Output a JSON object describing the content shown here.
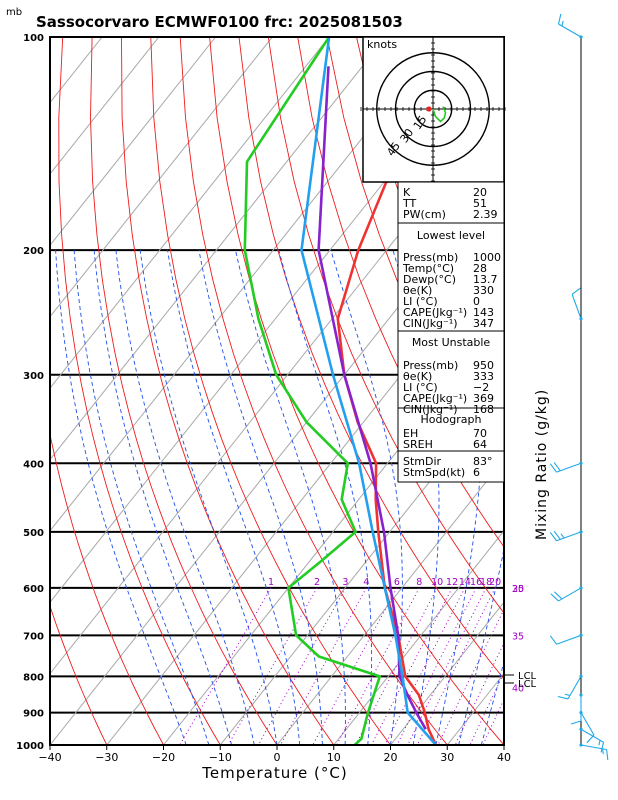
{
  "title": "Sassocorvaro ECMWF0100  frc: 2025081503",
  "chart_data": {
    "type": "skew-t",
    "pressure_unit": "mb",
    "xlabel": "Temperature (°C)",
    "right_label": "Mixing Ratio (g/kg)",
    "x_ticks": [
      "−40",
      "−30",
      "−20",
      "−10",
      "0",
      "10",
      "20",
      "30",
      "40"
    ],
    "x_tick_values": [
      -40,
      -30,
      -20,
      -10,
      0,
      10,
      20,
      30,
      40
    ],
    "p_labels": [
      "100",
      "200",
      "300",
      "400",
      "500",
      "600",
      "700",
      "800",
      "900",
      "1000"
    ],
    "p_label_values": [
      100,
      200,
      300,
      400,
      500,
      600,
      700,
      800,
      900,
      1000
    ],
    "temp_range": [
      -40,
      40
    ],
    "p_range": [
      100,
      1000
    ],
    "mixing_ratio_labels": [
      {
        "text": "1",
        "w": 1,
        "p": 600
      },
      {
        "text": "2",
        "w": 2,
        "p": 600
      },
      {
        "text": "3",
        "w": 3,
        "p": 600
      },
      {
        "text": "4",
        "w": 4,
        "p": 600
      },
      {
        "text": "6",
        "w": 6,
        "p": 600
      },
      {
        "text": "8",
        "w": 8,
        "p": 600
      },
      {
        "text": "10",
        "w": 10,
        "p": 600
      },
      {
        "text": "12",
        "w": 12,
        "p": 600
      },
      {
        "text": "14",
        "w": 14,
        "p": 600
      },
      {
        "text": "16",
        "w": 16,
        "p": 600
      },
      {
        "text": "18",
        "w": 18,
        "p": 600
      },
      {
        "text": "20",
        "w": 20,
        "p": 600
      },
      {
        "text": "25",
        "w": 25,
        "p": 600
      },
      {
        "text": "30",
        "w": 30,
        "p": 600
      },
      {
        "text": "35",
        "w": 35,
        "p": 700
      },
      {
        "text": "40",
        "w": 40,
        "p": 830
      }
    ],
    "lcl_label": "LCL",
    "series": [
      {
        "name": "Temperature",
        "color": "#ee3333",
        "points": [
          [
            1000,
            28
          ],
          [
            950,
            24.5
          ],
          [
            900,
            21.5
          ],
          [
            850,
            18
          ],
          [
            800,
            13
          ],
          [
            700,
            6
          ],
          [
            600,
            -3
          ],
          [
            500,
            -12
          ],
          [
            450,
            -17
          ],
          [
            400,
            -22
          ],
          [
            350,
            -31
          ],
          [
            300,
            -40
          ],
          [
            250,
            -49
          ],
          [
            200,
            -55
          ],
          [
            150,
            -61
          ],
          [
            100,
            -67
          ]
        ]
      },
      {
        "name": "Dewpoint",
        "color": "#22cc22",
        "points": [
          [
            1000,
            13.7
          ],
          [
            980,
            14
          ],
          [
            900,
            11.5
          ],
          [
            800,
            8.5
          ],
          [
            750,
            -5
          ],
          [
            700,
            -12
          ],
          [
            600,
            -20
          ],
          [
            550,
            -18
          ],
          [
            500,
            -16
          ],
          [
            450,
            -23
          ],
          [
            400,
            -27
          ],
          [
            350,
            -40
          ],
          [
            300,
            -52
          ],
          [
            250,
            -63
          ],
          [
            200,
            -75
          ],
          [
            150,
            -87
          ],
          [
            100,
            -90
          ]
        ]
      },
      {
        "name": "Parcel (most unstable)",
        "color": "#8822cc",
        "points": [
          [
            950,
            24
          ],
          [
            900,
            20
          ],
          [
            850,
            16
          ],
          [
            800,
            12
          ],
          [
            700,
            6
          ],
          [
            600,
            -2
          ],
          [
            500,
            -11
          ],
          [
            400,
            -23
          ],
          [
            300,
            -40
          ],
          [
            200,
            -62
          ],
          [
            110,
            -86
          ]
        ]
      },
      {
        "name": "Parcel (lowest level)",
        "color": "#22a0ee",
        "points": [
          [
            1000,
            28
          ],
          [
            900,
            18.5
          ],
          [
            800,
            12.5
          ],
          [
            700,
            5.5
          ],
          [
            600,
            -3
          ],
          [
            500,
            -13
          ],
          [
            400,
            -25
          ],
          [
            300,
            -42
          ],
          [
            200,
            -65
          ],
          [
            100,
            -90
          ]
        ]
      }
    ]
  },
  "hodograph": {
    "units": "knots",
    "rings": [
      "15",
      "30",
      "45"
    ],
    "trace": [
      [
        0,
        0
      ],
      [
        2,
        -6
      ],
      [
        6,
        -10
      ],
      [
        9,
        -7
      ],
      [
        10,
        -3
      ],
      [
        8,
        2
      ]
    ]
  },
  "indices": {
    "top": [
      {
        "label": "K",
        "value": "20"
      },
      {
        "label": "TT",
        "value": "51"
      },
      {
        "label": "PW(cm)",
        "value": "2.39"
      }
    ],
    "lowest": {
      "header": "Lowest level",
      "rows": [
        {
          "label": "Press(mb)",
          "value": "1000"
        },
        {
          "label": "Temp(°C)",
          "value": "28"
        },
        {
          "label": "Dewp(°C)",
          "value": "13.7"
        },
        {
          "label": "θe(K)",
          "value": "330"
        },
        {
          "label": "LI (°C)",
          "value": "0"
        },
        {
          "label": "CAPE(Jkg⁻¹)",
          "value": "143"
        },
        {
          "label": "CIN(Jkg⁻¹)",
          "value": "347"
        }
      ]
    },
    "unstable": {
      "header": "Most Unstable",
      "rows": [
        {
          "label": "Press(mb)",
          "value": "950"
        },
        {
          "label": "θe(K)",
          "value": "333"
        },
        {
          "label": "LI (°C)",
          "value": "−2"
        },
        {
          "label": "CAPE(Jkg⁻¹)",
          "value": "369"
        },
        {
          "label": "CIN(Jkg⁻¹)",
          "value": "168"
        }
      ]
    },
    "hodo": {
      "header": "Hodograph",
      "rows": [
        {
          "label": "EH",
          "value": "70"
        },
        {
          "label": "SREH",
          "value": "64"
        },
        {
          "label": "StmDir",
          "value": "83°"
        },
        {
          "label": "StmSpd(kt)",
          "value": "6"
        }
      ]
    }
  },
  "winds": [
    {
      "p": 100,
      "dir": 300,
      "spd": 15
    },
    {
      "p": 250,
      "dir": 340,
      "spd": 10
    },
    {
      "p": 400,
      "dir": 250,
      "spd": 20
    },
    {
      "p": 500,
      "dir": 250,
      "spd": 25
    },
    {
      "p": 600,
      "dir": 240,
      "spd": 20
    },
    {
      "p": 700,
      "dir": 250,
      "spd": 10
    },
    {
      "p": 800,
      "dir": 210,
      "spd": 15
    },
    {
      "p": 850,
      "dir": 180,
      "spd": 10
    },
    {
      "p": 900,
      "dir": 150,
      "spd": 10
    },
    {
      "p": 950,
      "dir": 120,
      "spd": 15
    },
    {
      "p": 1000,
      "dir": 100,
      "spd": 15
    }
  ]
}
